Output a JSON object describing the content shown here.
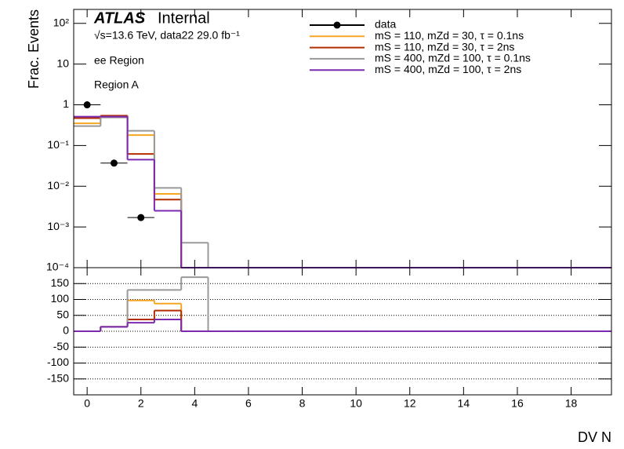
{
  "chart_data": [
    {
      "type": "histogram",
      "y_label": "Frac. Events",
      "log_y": true,
      "atlas_label": "ATLAS",
      "status": "Internal",
      "annotations": [
        "√s=13.6 TeV, data22 29.0 fb⁻¹",
        "ee Region",
        "Region A"
      ],
      "x": [
        0,
        1,
        2,
        3,
        4,
        5,
        6,
        7,
        8,
        9,
        10,
        11,
        12,
        13,
        14,
        15,
        16,
        17,
        18,
        19
      ],
      "xlim": [
        -0.5,
        19.5
      ],
      "ylim": [
        0.0001,
        220
      ],
      "yticks": [
        {
          "value": 100,
          "label": "10²"
        },
        10,
        1,
        {
          "value": 0.1,
          "label": "10⁻¹"
        },
        {
          "value": 0.01,
          "label": "10⁻²"
        },
        {
          "value": 0.001,
          "label": "10⁻³"
        },
        {
          "value": 0.0001,
          "label": "10⁻⁴"
        }
      ],
      "series": [
        {
          "name": "data",
          "style": "points",
          "color": "#000000",
          "values": [
            1.0,
            0.037,
            0.0017,
            null,
            null,
            null,
            null,
            null,
            null,
            null,
            null,
            null,
            null,
            null,
            null,
            null,
            null,
            null,
            null,
            null
          ]
        },
        {
          "name": "mS = 110, mZd = 30, τ = 0.1ns",
          "style": "step",
          "color": "#f5a623",
          "values": [
            0.35,
            0.5,
            0.18,
            0.0065,
            0,
            0,
            0,
            0,
            0,
            0,
            0,
            0,
            0,
            0,
            0,
            0,
            0,
            0,
            0,
            0
          ]
        },
        {
          "name": "mS = 110, mZd = 30, τ = 2ns",
          "style": "step",
          "color": "#b22e00",
          "values": [
            0.47,
            0.54,
            0.062,
            0.0047,
            0,
            0,
            0,
            0,
            0,
            0,
            0,
            0,
            0,
            0,
            0,
            0,
            0,
            0,
            0,
            0
          ]
        },
        {
          "name": "mS = 400, mZd = 100, τ = 0.1ns",
          "style": "step",
          "color": "#999999",
          "values": [
            0.3,
            0.49,
            0.23,
            0.0091,
            0.00041,
            0,
            0,
            0,
            0,
            0,
            0,
            0,
            0,
            0,
            0,
            0,
            0,
            0,
            0,
            0
          ]
        },
        {
          "name": "mS = 400, mZd = 100, τ = 2ns",
          "style": "step",
          "color": "#7b2ab0",
          "values": [
            0.51,
            0.51,
            0.045,
            0.0025,
            0,
            0,
            0,
            0,
            0,
            0,
            0,
            0,
            0,
            0,
            0,
            0,
            0,
            0,
            0,
            0
          ]
        }
      ]
    },
    {
      "type": "histogram",
      "x_label": "DV N",
      "grid": true,
      "x": [
        0,
        1,
        2,
        3,
        4,
        5,
        6,
        7,
        8,
        9,
        10,
        11,
        12,
        13,
        14,
        15,
        16,
        17,
        18,
        19
      ],
      "xlim": [
        -0.5,
        19.5
      ],
      "xticks": [
        0,
        2,
        4,
        6,
        8,
        10,
        12,
        14,
        16,
        18
      ],
      "ylim": [
        -200,
        200
      ],
      "yticks": [
        -150,
        -100,
        -50,
        0,
        50,
        100,
        150
      ],
      "series": [
        {
          "color": "#f5a623",
          "values": [
            0,
            14,
            97,
            87,
            0,
            0,
            0,
            0,
            0,
            0,
            0,
            0,
            0,
            0,
            0,
            0,
            0,
            0,
            0,
            0
          ]
        },
        {
          "color": "#b22e00",
          "values": [
            0,
            14,
            37,
            65,
            0,
            0,
            0,
            0,
            0,
            0,
            0,
            0,
            0,
            0,
            0,
            0,
            0,
            0,
            0,
            0
          ]
        },
        {
          "color": "#999999",
          "values": [
            0,
            14,
            130,
            130,
            170,
            0,
            0,
            0,
            0,
            0,
            0,
            0,
            0,
            0,
            0,
            0,
            0,
            0,
            0,
            0
          ]
        },
        {
          "color": "#7b2ab0",
          "values": [
            0,
            14,
            27,
            37,
            0,
            0,
            0,
            0,
            0,
            0,
            0,
            0,
            0,
            0,
            0,
            0,
            0,
            0,
            0,
            0
          ]
        }
      ]
    }
  ]
}
